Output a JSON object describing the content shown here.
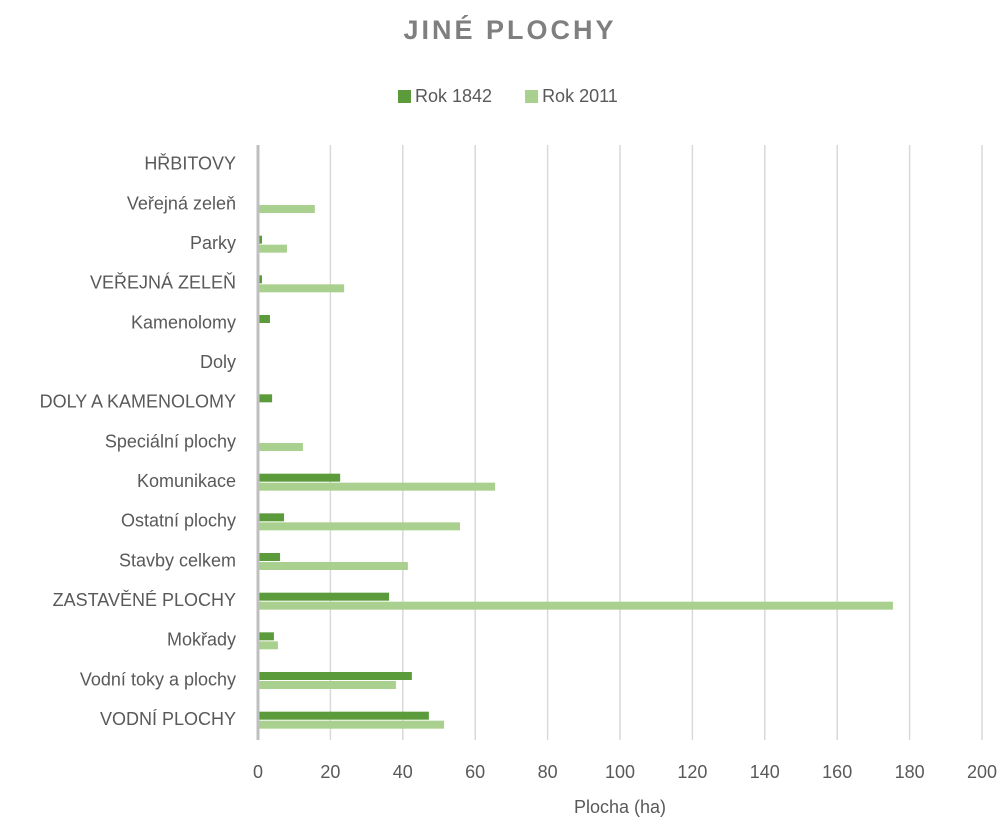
{
  "chart_data": {
    "type": "barh",
    "title": "JINÉ PLOCHY",
    "x_label": "Plocha (ha)",
    "categories": [
      "VODNÍ PLOCHY",
      "Vodní toky a plochy",
      "Mokřady",
      "ZASTAVĚNÉ PLOCHY",
      "Stavby celkem",
      "Ostatní plochy",
      "Komunikace",
      "Speciální plochy",
      "DOLY A KAMENOLOMY",
      "Doly",
      "Kamenolomy",
      "VEŘEJNÁ ZELEŇ",
      "Parky",
      "Veřejná zeleň",
      "HŘBITOVY"
    ],
    "series": [
      {
        "name": "Rok 1842",
        "color": "#5b9b3b",
        "values": [
          47.2,
          42.5,
          4.4,
          36.2,
          6.1,
          7.2,
          22.7,
          0,
          3.9,
          0,
          3.3,
          1.1,
          1.1,
          0,
          0
        ]
      },
      {
        "name": "Rok 2011",
        "color": "#a9d08e",
        "values": [
          51.4,
          38.1,
          5.5,
          175.4,
          41.4,
          55.8,
          65.5,
          12.4,
          0,
          0,
          0,
          23.8,
          8.0,
          15.7,
          0
        ]
      }
    ],
    "xlim": [
      0,
      200
    ],
    "xticks": [
      0,
      20,
      40,
      60,
      80,
      100,
      120,
      140,
      160,
      180,
      200
    ],
    "grid": true,
    "legend": "top"
  }
}
